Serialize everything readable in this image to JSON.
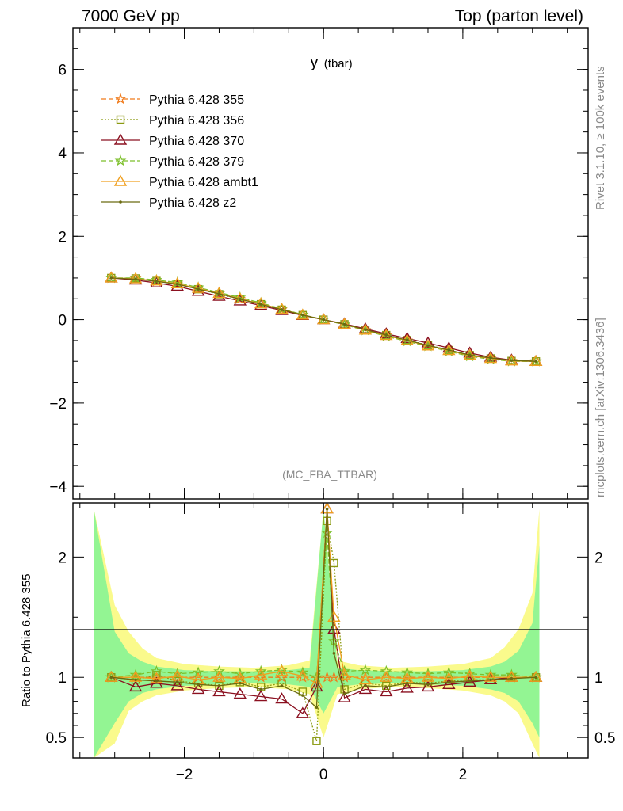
{
  "header": {
    "left": "7000 GeV pp",
    "right": "Top (parton level)"
  },
  "side": {
    "rivet": "Rivet 3.1.10, ≥ 100k events",
    "mcplots": "mcplots.cern.ch [arXiv:1306.3436]"
  },
  "chart_data": [
    {
      "type": "line",
      "title": "y",
      "title_suffix": "(tbar)",
      "analysis_tag": "(MC_FBA_TTBAR)",
      "xlim": [
        -3.6,
        3.8
      ],
      "ylim": [
        -4.3,
        7.0
      ],
      "yticks": [
        -4,
        -2,
        0,
        2,
        4,
        6
      ],
      "ytick_labels": [
        "−4",
        "−2",
        "0",
        "2",
        "4",
        "6"
      ],
      "legend_position": "top-left",
      "x": [
        -3.05,
        -2.7,
        -2.4,
        -2.1,
        -1.8,
        -1.5,
        -1.2,
        -0.9,
        -0.6,
        -0.3,
        0.0,
        0.3,
        0.6,
        0.9,
        1.2,
        1.5,
        1.8,
        2.1,
        2.4,
        2.7,
        3.05
      ],
      "series": [
        {
          "name": "Pythia 6.428 355",
          "color": "#f07a1a",
          "dash": "6,3",
          "marker": "star",
          "values": [
            1.0,
            0.98,
            0.92,
            0.86,
            0.74,
            0.63,
            0.5,
            0.38,
            0.24,
            0.11,
            0.0,
            -0.12,
            -0.25,
            -0.38,
            -0.5,
            -0.62,
            -0.74,
            -0.86,
            -0.93,
            -0.99,
            -1.0
          ]
        },
        {
          "name": "Pythia 6.428 356",
          "color": "#8a9a10",
          "dash": "2,2",
          "marker": "square",
          "values": [
            1.0,
            0.99,
            0.93,
            0.85,
            0.73,
            0.61,
            0.49,
            0.37,
            0.24,
            0.11,
            0.0,
            -0.11,
            -0.24,
            -0.37,
            -0.49,
            -0.61,
            -0.73,
            -0.85,
            -0.93,
            -0.99,
            -1.0
          ]
        },
        {
          "name": "Pythia 6.428 370",
          "color": "#8b1020",
          "dash": "",
          "marker": "triangle",
          "values": [
            1.0,
            0.95,
            0.88,
            0.8,
            0.68,
            0.56,
            0.45,
            0.34,
            0.22,
            0.1,
            0.0,
            -0.1,
            -0.22,
            -0.34,
            -0.45,
            -0.56,
            -0.68,
            -0.8,
            -0.9,
            -0.97,
            -1.0
          ]
        },
        {
          "name": "Pythia 6.428 379",
          "color": "#7cbf2a",
          "dash": "6,3",
          "marker": "star",
          "values": [
            1.0,
            1.0,
            0.95,
            0.89,
            0.77,
            0.65,
            0.53,
            0.4,
            0.26,
            0.12,
            0.0,
            -0.12,
            -0.26,
            -0.4,
            -0.52,
            -0.64,
            -0.76,
            -0.88,
            -0.95,
            -1.0,
            -1.0
          ]
        },
        {
          "name": "Pythia 6.428 ambt1",
          "color": "#f0a020",
          "dash": "",
          "marker": "triangle",
          "values": [
            1.0,
            0.98,
            0.93,
            0.86,
            0.75,
            0.63,
            0.5,
            0.38,
            0.25,
            0.11,
            0.0,
            -0.11,
            -0.25,
            -0.38,
            -0.5,
            -0.63,
            -0.74,
            -0.86,
            -0.93,
            -0.99,
            -1.0
          ]
        },
        {
          "name": "Pythia 6.428 z2",
          "color": "#6b6b10",
          "dash": "",
          "marker": "dot",
          "values": [
            1.0,
            0.97,
            0.92,
            0.85,
            0.73,
            0.62,
            0.49,
            0.37,
            0.24,
            0.11,
            0.0,
            -0.11,
            -0.24,
            -0.37,
            -0.49,
            -0.62,
            -0.73,
            -0.85,
            -0.92,
            -0.98,
            -1.0
          ]
        }
      ]
    },
    {
      "type": "line",
      "ylabel": "Ratio to Pythia 6.428 355",
      "xlim": [
        -3.6,
        3.8
      ],
      "ylim": [
        0.33,
        2.45
      ],
      "yticks": [
        0.5,
        1,
        2
      ],
      "ytick_labels": [
        "0.5",
        "1",
        "2"
      ],
      "xticks": [
        -2,
        0,
        2
      ],
      "xtick_labels": [
        "−2",
        "0",
        "2"
      ],
      "reference_line": 1,
      "band_x": [
        -3.3,
        -3.0,
        -2.8,
        -2.6,
        -2.4,
        -2.0,
        -1.5,
        -1.0,
        -0.5,
        -0.2,
        0.0,
        0.2,
        0.5,
        1.0,
        1.5,
        2.0,
        2.4,
        2.6,
        2.8,
        3.0,
        3.1
      ],
      "band_yellow_lo": [
        0.0,
        0.45,
        0.72,
        0.8,
        0.85,
        0.89,
        0.91,
        0.92,
        0.9,
        0.86,
        0.5,
        0.86,
        0.9,
        0.92,
        0.91,
        0.89,
        0.85,
        0.8,
        0.7,
        0.45,
        0.3
      ],
      "band_yellow_hi": [
        2.4,
        1.6,
        1.38,
        1.24,
        1.16,
        1.11,
        1.09,
        1.08,
        1.1,
        1.14,
        2.4,
        1.14,
        1.1,
        1.08,
        1.09,
        1.11,
        1.16,
        1.25,
        1.4,
        1.7,
        2.4
      ],
      "band_green_lo": [
        0.0,
        0.62,
        0.8,
        0.87,
        0.9,
        0.93,
        0.94,
        0.95,
        0.94,
        0.92,
        0.7,
        0.92,
        0.94,
        0.95,
        0.94,
        0.93,
        0.9,
        0.87,
        0.8,
        0.62,
        0.5
      ],
      "band_green_hi": [
        2.4,
        1.38,
        1.2,
        1.13,
        1.09,
        1.06,
        1.05,
        1.05,
        1.06,
        1.08,
        2.4,
        1.08,
        1.06,
        1.05,
        1.05,
        1.06,
        1.09,
        1.13,
        1.22,
        1.45,
        2.1
      ],
      "x": [
        -3.05,
        -2.7,
        -2.4,
        -2.1,
        -1.8,
        -1.5,
        -1.2,
        -0.9,
        -0.6,
        -0.3,
        -0.1,
        0.05,
        0.15,
        0.3,
        0.6,
        0.9,
        1.2,
        1.5,
        1.8,
        2.1,
        2.4,
        2.7,
        3.05
      ],
      "series": [
        {
          "name": "Pythia 6.428 355",
          "color": "#f07a1a",
          "dash": "6,3",
          "marker": "star",
          "values": [
            1.0,
            1.0,
            1.0,
            1.0,
            1.0,
            1.0,
            1.0,
            1.0,
            1.0,
            1.0,
            1.0,
            1.0,
            1.0,
            1.0,
            1.0,
            1.0,
            1.0,
            1.0,
            1.0,
            1.0,
            1.0,
            1.0,
            1.0
          ]
        },
        {
          "name": "Pythia 6.428 356",
          "color": "#8a9a10",
          "dash": "2,2",
          "marker": "square",
          "values": [
            1.0,
            0.98,
            1.02,
            0.97,
            0.95,
            0.93,
            0.96,
            0.92,
            0.95,
            0.88,
            0.47,
            2.3,
            1.95,
            0.9,
            0.95,
            0.93,
            0.96,
            0.95,
            0.97,
            0.98,
            0.98,
            1.0,
            1.0
          ]
        },
        {
          "name": "Pythia 6.428 370",
          "color": "#8b1020",
          "dash": "",
          "marker": "triangle",
          "values": [
            1.0,
            0.92,
            0.95,
            0.93,
            0.9,
            0.88,
            0.86,
            0.84,
            0.82,
            0.7,
            0.92,
            2.4,
            1.4,
            0.83,
            0.9,
            0.88,
            0.91,
            0.92,
            0.94,
            0.96,
            0.98,
            1.0,
            1.0
          ]
        },
        {
          "name": "Pythia 6.428 379",
          "color": "#7cbf2a",
          "dash": "6,3",
          "marker": "star",
          "values": [
            1.0,
            1.02,
            1.05,
            1.03,
            1.04,
            1.05,
            1.03,
            1.05,
            1.06,
            1.04,
            1.0,
            2.2,
            1.3,
            1.05,
            1.06,
            1.05,
            1.04,
            1.03,
            1.04,
            1.03,
            1.02,
            1.02,
            1.0
          ]
        },
        {
          "name": "Pythia 6.428 ambt1",
          "color": "#f0a020",
          "dash": "",
          "marker": "triangle",
          "values": [
            1.0,
            1.0,
            0.99,
            1.01,
            0.98,
            1.0,
            0.99,
            1.02,
            1.05,
            1.01,
            0.95,
            2.4,
            1.5,
            1.02,
            0.98,
            1.0,
            0.99,
            1.0,
            0.99,
            1.01,
            1.0,
            1.0,
            1.0
          ]
        },
        {
          "name": "Pythia 6.428 z2",
          "color": "#6b6b10",
          "dash": "",
          "marker": "dot",
          "values": [
            1.0,
            0.98,
            0.97,
            0.96,
            0.94,
            0.93,
            0.95,
            0.9,
            0.93,
            0.85,
            0.75,
            2.4,
            1.2,
            0.86,
            0.93,
            0.92,
            0.95,
            0.94,
            0.96,
            0.97,
            0.98,
            0.99,
            1.0
          ]
        }
      ]
    }
  ]
}
